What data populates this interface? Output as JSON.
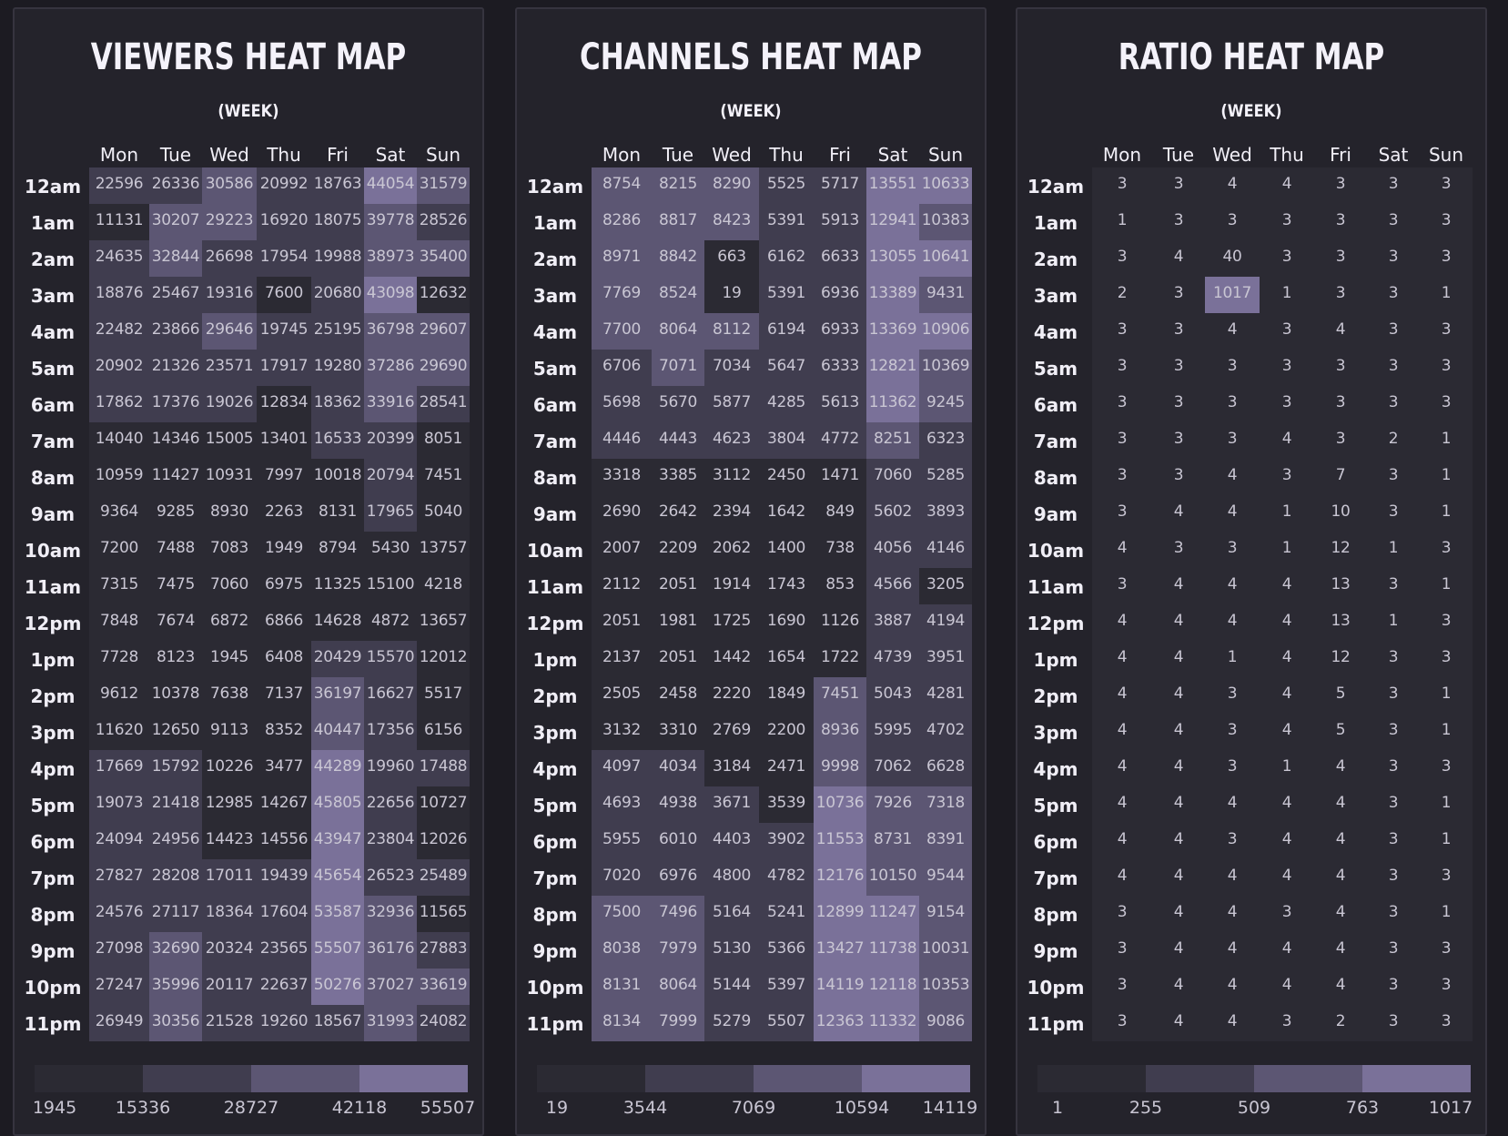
{
  "days": [
    "Mon",
    "Tue",
    "Wed",
    "Thu",
    "Fri",
    "Sat",
    "Sun"
  ],
  "hours": [
    "12am",
    "1am",
    "2am",
    "3am",
    "4am",
    "5am",
    "6am",
    "7am",
    "8am",
    "9am",
    "10am",
    "11am",
    "12pm",
    "1pm",
    "2pm",
    "3pm",
    "4pm",
    "5pm",
    "6pm",
    "7pm",
    "8pm",
    "9pm",
    "10pm",
    "11pm"
  ],
  "colors": [
    "#2b2a33",
    "#403d4f",
    "#5c5673",
    "#7a7199"
  ],
  "chart_data": [
    {
      "type": "heatmap",
      "title": "VIEWERS HEAT MAP",
      "subtitle": "(WEEK)",
      "legend_ticks": [
        "1945",
        "15336",
        "28727",
        "42118",
        "55507"
      ],
      "thresholds": [
        1945,
        15336,
        28727,
        42118,
        55507
      ],
      "values": [
        [
          22596,
          26336,
          30586,
          20992,
          18763,
          44054,
          31579
        ],
        [
          11131,
          30207,
          29223,
          16920,
          18075,
          39778,
          28526
        ],
        [
          24635,
          32844,
          26698,
          17954,
          19988,
          38973,
          35400
        ],
        [
          18876,
          25467,
          19316,
          7600,
          20680,
          43098,
          12632
        ],
        [
          22482,
          23866,
          29646,
          19745,
          25195,
          36798,
          29607
        ],
        [
          20902,
          21326,
          23571,
          17917,
          19280,
          37286,
          29690
        ],
        [
          17862,
          17376,
          19026,
          12834,
          18362,
          33916,
          28541
        ],
        [
          14040,
          14346,
          15005,
          13401,
          16533,
          20399,
          8051
        ],
        [
          10959,
          11427,
          10931,
          7997,
          10018,
          20794,
          7451
        ],
        [
          9364,
          9285,
          8930,
          2263,
          8131,
          17965,
          5040
        ],
        [
          7200,
          7488,
          7083,
          1949,
          8794,
          5430,
          13757
        ],
        [
          7315,
          7475,
          7060,
          6975,
          11325,
          15100,
          4218
        ],
        [
          7848,
          7674,
          6872,
          6866,
          14628,
          4872,
          13657
        ],
        [
          7728,
          8123,
          1945,
          6408,
          20429,
          15570,
          12012
        ],
        [
          9612,
          10378,
          7638,
          7137,
          36197,
          16627,
          5517
        ],
        [
          11620,
          12650,
          9113,
          8352,
          40447,
          17356,
          6156
        ],
        [
          17669,
          15792,
          10226,
          3477,
          44289,
          19960,
          17488
        ],
        [
          19073,
          21418,
          12985,
          14267,
          45805,
          22656,
          10727
        ],
        [
          24094,
          24956,
          14423,
          14556,
          43947,
          23804,
          12026
        ],
        [
          27827,
          28208,
          17011,
          19439,
          45654,
          26523,
          25489
        ],
        [
          24576,
          27117,
          18364,
          17604,
          53587,
          32936,
          11565
        ],
        [
          27098,
          32690,
          20324,
          23565,
          55507,
          36176,
          27883
        ],
        [
          27247,
          35996,
          20117,
          22637,
          50276,
          37027,
          33619
        ],
        [
          26949,
          30356,
          21528,
          19260,
          18567,
          31993,
          24082
        ]
      ]
    },
    {
      "type": "heatmap",
      "title": "CHANNELS HEAT MAP",
      "subtitle": "(WEEK)",
      "legend_ticks": [
        "19",
        "3544",
        "7069",
        "10594",
        "14119"
      ],
      "thresholds": [
        19,
        3544,
        7069,
        10594,
        14119
      ],
      "values": [
        [
          8754,
          8215,
          8290,
          5525,
          5717,
          13551,
          10633
        ],
        [
          8286,
          8817,
          8423,
          5391,
          5913,
          12941,
          10383
        ],
        [
          8971,
          8842,
          663,
          6162,
          6633,
          13055,
          10641
        ],
        [
          7769,
          8524,
          19,
          5391,
          6936,
          13389,
          9431
        ],
        [
          7700,
          8064,
          8112,
          6194,
          6933,
          13369,
          10906
        ],
        [
          6706,
          7071,
          7034,
          5647,
          6333,
          12821,
          10369
        ],
        [
          5698,
          5670,
          5877,
          4285,
          5613,
          11362,
          9245
        ],
        [
          4446,
          4443,
          4623,
          3804,
          4772,
          8251,
          6323
        ],
        [
          3318,
          3385,
          3112,
          2450,
          1471,
          7060,
          5285
        ],
        [
          2690,
          2642,
          2394,
          1642,
          849,
          5602,
          3893
        ],
        [
          2007,
          2209,
          2062,
          1400,
          738,
          4056,
          4146
        ],
        [
          2112,
          2051,
          1914,
          1743,
          853,
          4566,
          3205
        ],
        [
          2051,
          1981,
          1725,
          1690,
          1126,
          3887,
          4194
        ],
        [
          2137,
          2051,
          1442,
          1654,
          1722,
          4739,
          3951
        ],
        [
          2505,
          2458,
          2220,
          1849,
          7451,
          5043,
          4281
        ],
        [
          3132,
          3310,
          2769,
          2200,
          8936,
          5995,
          4702
        ],
        [
          4097,
          4034,
          3184,
          2471,
          9998,
          7062,
          6628
        ],
        [
          4693,
          4938,
          3671,
          3539,
          10736,
          7926,
          7318
        ],
        [
          5955,
          6010,
          4403,
          3902,
          11553,
          8731,
          8391
        ],
        [
          7020,
          6976,
          4800,
          4782,
          12176,
          10150,
          9544
        ],
        [
          7500,
          7496,
          5164,
          5241,
          12899,
          11247,
          9154
        ],
        [
          8038,
          7979,
          5130,
          5366,
          13427,
          11738,
          10031
        ],
        [
          8131,
          8064,
          5144,
          5397,
          14119,
          12118,
          10353
        ],
        [
          8134,
          7999,
          5279,
          5507,
          12363,
          11332,
          9086
        ]
      ]
    },
    {
      "type": "heatmap",
      "title": "RATIO HEAT MAP",
      "subtitle": "(WEEK)",
      "legend_ticks": [
        "1",
        "255",
        "509",
        "763",
        "1017"
      ],
      "thresholds": [
        1,
        255,
        509,
        763,
        1017
      ],
      "values": [
        [
          3,
          3,
          4,
          4,
          3,
          3,
          3
        ],
        [
          1,
          3,
          3,
          3,
          3,
          3,
          3
        ],
        [
          3,
          4,
          40,
          3,
          3,
          3,
          3
        ],
        [
          2,
          3,
          1017,
          1,
          3,
          3,
          1
        ],
        [
          3,
          3,
          4,
          3,
          4,
          3,
          3
        ],
        [
          3,
          3,
          3,
          3,
          3,
          3,
          3
        ],
        [
          3,
          3,
          3,
          3,
          3,
          3,
          3
        ],
        [
          3,
          3,
          3,
          4,
          3,
          2,
          1
        ],
        [
          3,
          3,
          4,
          3,
          7,
          3,
          1
        ],
        [
          3,
          4,
          4,
          1,
          10,
          3,
          1
        ],
        [
          4,
          3,
          3,
          1,
          12,
          1,
          3
        ],
        [
          3,
          4,
          4,
          4,
          13,
          3,
          1
        ],
        [
          4,
          4,
          4,
          4,
          13,
          1,
          3
        ],
        [
          4,
          4,
          1,
          4,
          12,
          3,
          3
        ],
        [
          4,
          4,
          3,
          4,
          5,
          3,
          1
        ],
        [
          4,
          4,
          3,
          4,
          5,
          3,
          1
        ],
        [
          4,
          4,
          3,
          1,
          4,
          3,
          3
        ],
        [
          4,
          4,
          4,
          4,
          4,
          3,
          1
        ],
        [
          4,
          4,
          3,
          4,
          4,
          3,
          1
        ],
        [
          4,
          4,
          4,
          4,
          4,
          3,
          3
        ],
        [
          3,
          4,
          4,
          3,
          4,
          3,
          1
        ],
        [
          3,
          4,
          4,
          4,
          4,
          3,
          3
        ],
        [
          3,
          4,
          4,
          4,
          4,
          3,
          3
        ],
        [
          3,
          4,
          4,
          3,
          2,
          3,
          3
        ]
      ]
    }
  ]
}
